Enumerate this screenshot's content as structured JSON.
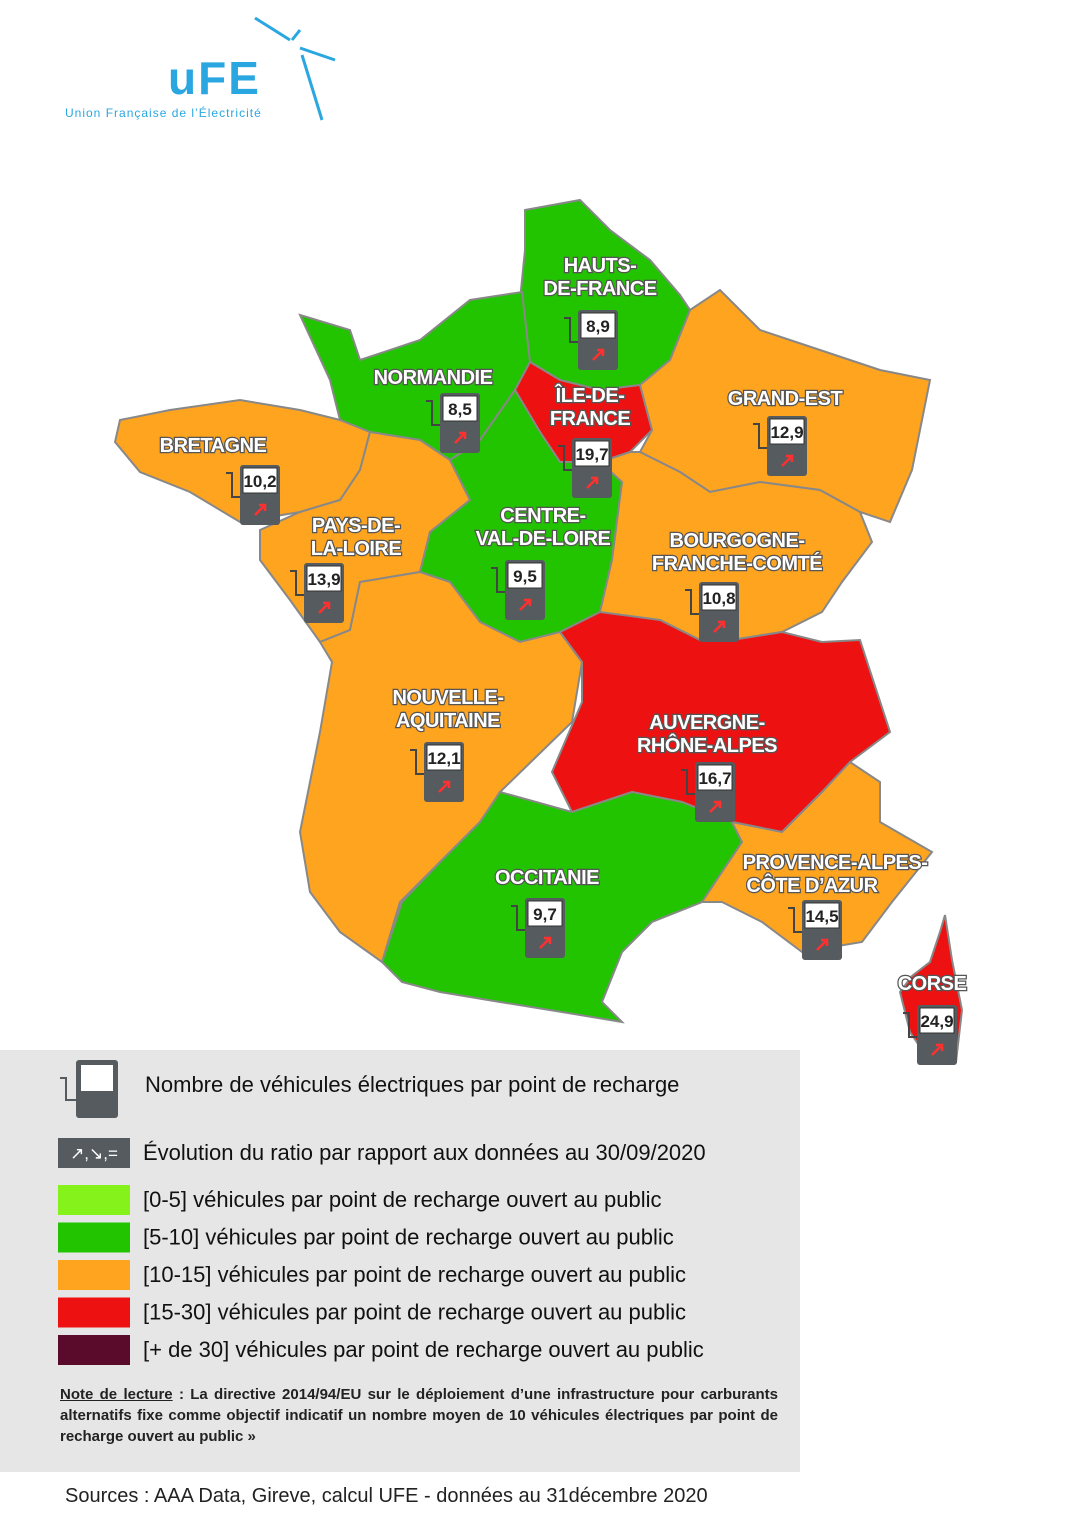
{
  "logo": {
    "wordmark": "uFE",
    "tagline": "Union Française de l’Électricité"
  },
  "regions": [
    {
      "name_lines": [
        "HAUTS-",
        "DE-FRANCE"
      ],
      "value": "8,9",
      "color": "#22c400"
    },
    {
      "name_lines": [
        "NORMANDIE"
      ],
      "value": "8,5",
      "color": "#22c400"
    },
    {
      "name_lines": [
        "ÎLE-DE-",
        "FRANCE"
      ],
      "value": "19,7",
      "color": "#ee1111"
    },
    {
      "name_lines": [
        "GRAND-EST"
      ],
      "value": "12,9",
      "color": "#ffa41e"
    },
    {
      "name_lines": [
        "BRETAGNE"
      ],
      "value": "10,2",
      "color": "#ffa41e"
    },
    {
      "name_lines": [
        "PAYS-DE-",
        "LA-LOIRE"
      ],
      "value": "13,9",
      "color": "#ffa41e"
    },
    {
      "name_lines": [
        "CENTRE-",
        "VAL-DE-LOIRE"
      ],
      "value": "9,5",
      "color": "#22c400"
    },
    {
      "name_lines": [
        "BOURGOGNE-",
        "FRANCHE-COMTÉ"
      ],
      "value": "10,8",
      "color": "#ffa41e"
    },
    {
      "name_lines": [
        "NOUVELLE-",
        "AQUITAINE"
      ],
      "value": "12,1",
      "color": "#ffa41e"
    },
    {
      "name_lines": [
        "AUVERGNE-",
        "RHÔNE-ALPES"
      ],
      "value": "16,7",
      "color": "#ee1111"
    },
    {
      "name_lines": [
        "OCCITANIE"
      ],
      "value": "9,7",
      "color": "#22c400"
    },
    {
      "name_lines": [
        "PROVENCE-ALPES-",
        "CÔTE D’AZUR"
      ],
      "value": "14,5",
      "color": "#ffa41e"
    },
    {
      "name_lines": [
        "CORSE"
      ],
      "value": "24,9",
      "color": "#ee1111"
    }
  ],
  "legend": {
    "icon_text": "Nombre de véhicules électriques par point de recharge",
    "evolution_symbols": "↗,↘,=",
    "evolution_text": "Évolution du ratio par rapport aux données au 30/09/2020",
    "classes": [
      {
        "label": "[0-5] véhicules par point de recharge ouvert au public",
        "color": "#86f21c"
      },
      {
        "label": "[5-10] véhicules par point de recharge ouvert au public",
        "color": "#22c400"
      },
      {
        "label": "[10-15] véhicules par point de recharge ouvert au public",
        "color": "#ffa41e"
      },
      {
        "label": "[15-30] véhicules par point de recharge ouvert au public",
        "color": "#ee1111"
      },
      {
        "label": "[+ de 30] véhicules par point de recharge ouvert au public",
        "color": "#5a0a2a"
      }
    ],
    "note_heading": "Note de lecture",
    "note_text": " : La directive 2014/94/EU sur le déploiement d’une infrastructure pour carburants alternatifs fixe comme objectif indicatif un nombre moyen de 10 véhicules électriques par point de recharge ouvert au public »"
  },
  "sources": "Sources : AAA Data, Gireve, calcul UFE - données au 31décembre 2020"
}
